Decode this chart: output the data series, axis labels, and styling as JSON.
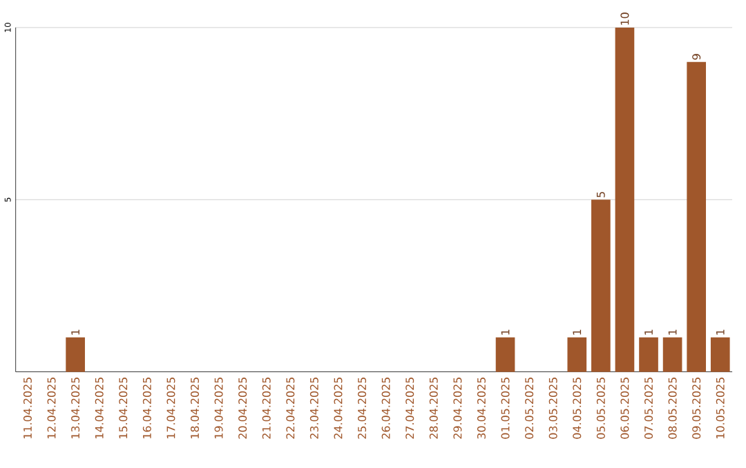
{
  "chart_data": {
    "type": "bar",
    "categories": [
      "11.04.2025",
      "12.04.2025",
      "13.04.2025",
      "14.04.2025",
      "15.04.2025",
      "16.04.2025",
      "17.04.2025",
      "18.04.2025",
      "19.04.2025",
      "20.04.2025",
      "21.04.2025",
      "22.04.2025",
      "23.04.2025",
      "24.04.2025",
      "25.04.2025",
      "26.04.2025",
      "27.04.2025",
      "28.04.2025",
      "29.04.2025",
      "30.04.2025",
      "01.05.2025",
      "02.05.2025",
      "03.05.2025",
      "04.05.2025",
      "05.05.2025",
      "06.05.2025",
      "07.05.2025",
      "08.05.2025",
      "09.05.2025",
      "10.05.2025"
    ],
    "values": [
      0,
      0,
      1,
      0,
      0,
      0,
      0,
      0,
      0,
      0,
      0,
      0,
      0,
      0,
      0,
      0,
      0,
      0,
      0,
      0,
      1,
      0,
      0,
      1,
      5,
      10,
      1,
      1,
      9,
      1
    ],
    "value_labels": [
      null,
      null,
      "1",
      null,
      null,
      null,
      null,
      null,
      null,
      null,
      null,
      null,
      null,
      null,
      null,
      null,
      null,
      null,
      null,
      null,
      "1",
      null,
      null,
      "1",
      "5",
      "10",
      "1",
      "1",
      "9",
      "1"
    ],
    "color": "#a0572b",
    "ylim": [
      0,
      10
    ],
    "yticks": [
      5,
      10
    ],
    "grid": "y"
  }
}
